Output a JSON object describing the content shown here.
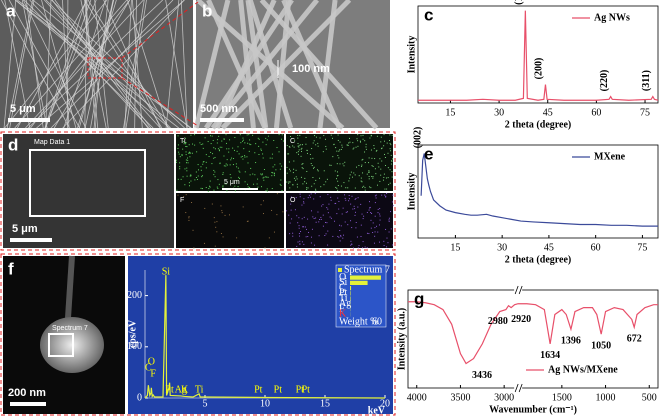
{
  "images": {
    "a": {
      "letter": "a",
      "scale_bar": "5 μm"
    },
    "b": {
      "letter": "b",
      "width_note": "100 nm",
      "scale_bar": "500 nm"
    },
    "d": {
      "letter": "d",
      "title": "Map Data 1",
      "scale_bar": "5 μm",
      "maps": [
        "Ti",
        "C",
        "F",
        "O"
      ],
      "map_scale": "5 μm"
    },
    "f": {
      "letter": "f",
      "spot": "Spectrum 7",
      "scale_bar": "200 nm"
    }
  },
  "chart_data": [
    {
      "type": "line",
      "letter": "c",
      "xlabel": "2 theta (degree)",
      "ylabel": "Intensity",
      "x": [
        5,
        10,
        15,
        20,
        25,
        30,
        35,
        37.5,
        38.1,
        38.7,
        42,
        43.8,
        44.3,
        44.8,
        50,
        55,
        60,
        63.9,
        64.4,
        64.9,
        70,
        76.9,
        77.4,
        77.9,
        79
      ],
      "series": [
        {
          "name": "Ag NWs",
          "color": "#e8506a",
          "values": [
            3,
            3,
            3,
            3,
            4,
            3,
            3,
            5,
            100,
            5,
            3,
            4,
            20,
            4,
            3,
            3,
            3,
            4,
            7,
            4,
            3,
            4,
            7,
            4,
            3
          ]
        }
      ],
      "xlim": [
        5,
        79
      ],
      "xticks": [
        15,
        30,
        45,
        60,
        75
      ],
      "ylim": [
        0,
        105
      ],
      "annotations": [
        {
          "text": "(111)",
          "x": 38.1
        },
        {
          "text": "(200)",
          "x": 44.3
        },
        {
          "text": "(220)",
          "x": 64.4
        },
        {
          "text": "(311)",
          "x": 77.4
        }
      ]
    },
    {
      "type": "line",
      "letter": "e",
      "xlabel": "2 theta (degree)",
      "ylabel": "Intensity",
      "x": [
        4,
        4.5,
        5,
        5.5,
        6,
        6.5,
        7,
        8,
        10,
        12,
        15,
        18,
        20,
        22,
        25,
        27,
        30,
        33,
        36,
        40,
        45,
        50,
        55,
        60,
        65,
        70,
        75,
        80
      ],
      "series": [
        {
          "name": "MXene",
          "color": "#3b4a9a",
          "values": [
            50,
            92,
            100,
            85,
            70,
            62,
            55,
            45,
            38,
            33,
            30,
            28,
            27,
            27,
            28,
            26,
            24,
            22,
            20,
            19,
            18,
            17,
            16,
            16,
            15,
            15,
            14,
            14
          ]
        }
      ],
      "xlim": [
        3,
        80
      ],
      "xticks": [
        15,
        30,
        45,
        60,
        75
      ],
      "ylim": [
        0,
        110
      ],
      "annotations": [
        {
          "text": "(002)",
          "x": 5
        }
      ]
    },
    {
      "type": "line",
      "xlabel": "keV",
      "ylabel": "cps/eV",
      "x": [
        0,
        0.2,
        0.28,
        0.4,
        0.5,
        0.53,
        0.6,
        0.68,
        0.8,
        1.5,
        1.74,
        1.8,
        2.0,
        2.05,
        2.1,
        2.98,
        3.3,
        4.0,
        4.51,
        4.6,
        5,
        10,
        20
      ],
      "series": [
        {
          "name": "Spectrum 7",
          "color": "#e4f23a",
          "values": [
            0,
            5,
            25,
            5,
            10,
            20,
            3,
            6,
            2,
            2,
            240,
            5,
            20,
            30,
            5,
            4,
            3,
            2,
            8,
            2,
            2,
            1,
            0
          ]
        }
      ],
      "xlim": [
        0,
        20
      ],
      "xticks": [
        5,
        10,
        15,
        20
      ],
      "ylim": [
        0,
        250
      ],
      "yticks": [
        0,
        100,
        200
      ],
      "annotations": [
        {
          "text": "Si",
          "x": 1.74
        },
        {
          "text": "Pt",
          "x": 2.05
        },
        {
          "text": "Ag",
          "x": 2.98
        },
        {
          "text": "K",
          "x": 3.3
        },
        {
          "text": "Ti",
          "x": 4.51
        },
        {
          "text": "Pt",
          "x": 9.44
        },
        {
          "text": "Pt",
          "x": 11.07
        },
        {
          "text": "Pt",
          "x": 12.9
        },
        {
          "text": "Pt",
          "x": 13.4
        },
        {
          "text": "F",
          "x": 0.68
        },
        {
          "text": "C",
          "x": 0.28
        },
        {
          "text": "O",
          "x": 0.53
        }
      ],
      "inset": {
        "title": "Spectrum 7",
        "xlabel": "Weight %",
        "xlim": [
          0,
          60
        ],
        "xticks": [
          60
        ],
        "categories": [
          "O",
          "Si",
          "C",
          "Pt",
          "Ti",
          "Ag",
          "F",
          "K"
        ],
        "values": [
          58,
          33,
          2,
          1,
          1,
          0.5,
          0.5,
          0.3
        ],
        "color": "#e4f23a"
      }
    },
    {
      "type": "line",
      "letter": "g",
      "xlabel": "Wavenumber (cm⁻¹)",
      "ylabel": "Intensity (a.u.)",
      "x": [
        4100,
        4000,
        3900,
        3800,
        3700,
        3600,
        3500,
        3436,
        3350,
        3250,
        3150,
        3050,
        2980,
        2950,
        2920,
        2880,
        2840,
        2000,
        1900,
        1800,
        1700,
        1634,
        1580,
        1500,
        1450,
        1396,
        1350,
        1250,
        1150,
        1100,
        1050,
        1000,
        900,
        800,
        700,
        672,
        640,
        550,
        450,
        400
      ],
      "series": [
        {
          "name": "Ag NWs/MXene",
          "color": "#e8506a",
          "values": [
            88,
            88,
            87,
            85,
            80,
            65,
            35,
            25,
            30,
            45,
            65,
            78,
            80,
            84,
            82,
            85,
            86,
            86,
            86,
            85,
            80,
            45,
            75,
            80,
            75,
            60,
            78,
            82,
            82,
            75,
            55,
            78,
            82,
            80,
            70,
            62,
            75,
            82,
            85,
            85
          ]
        }
      ],
      "xlim": [
        4100,
        400
      ],
      "xbreak": [
        2840,
        2000
      ],
      "xticks": [
        4000,
        3500,
        3000,
        1500,
        1000,
        500
      ],
      "ylim": [
        0,
        100
      ],
      "annotations": [
        {
          "text": 3436,
          "x": 3436
        },
        {
          "text": 2980,
          "x": 2980
        },
        {
          "text": 2920,
          "x": 2920
        },
        {
          "text": 1634,
          "x": 1634
        },
        {
          "text": 1396,
          "x": 1396
        },
        {
          "text": 1050,
          "x": 1050
        },
        {
          "text": 672,
          "x": 672
        }
      ]
    }
  ]
}
